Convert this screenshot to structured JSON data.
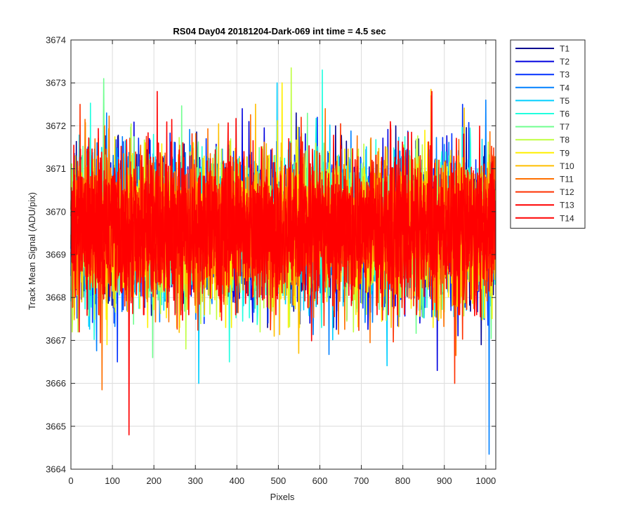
{
  "chart_data": {
    "type": "line",
    "title": "RS04 Day04 20181204-Dark-069 int time = 4.5 sec",
    "xlabel": "Pixels",
    "ylabel": "Track Mean Signal (ADU/pix)",
    "xlim": [
      0,
      1024
    ],
    "ylim": [
      3664,
      3674
    ],
    "xticks": [
      0,
      100,
      200,
      300,
      400,
      500,
      600,
      700,
      800,
      900,
      1000
    ],
    "yticks": [
      3664,
      3665,
      3666,
      3667,
      3668,
      3669,
      3670,
      3671,
      3672,
      3673,
      3674
    ],
    "grid": true,
    "legend_position": "outside-top-right",
    "n_points": 1024,
    "series": [
      {
        "name": "T1",
        "color": "#00008F",
        "mean": 3669.6,
        "approx_min": 3666.9,
        "approx_max": 3672.3
      },
      {
        "name": "T2",
        "color": "#0000DF",
        "mean": 3669.6,
        "approx_min": 3666.3,
        "approx_max": 3672.4
      },
      {
        "name": "T3",
        "color": "#0030FF",
        "mean": 3669.6,
        "approx_min": 3666.5,
        "approx_max": 3672.5
      },
      {
        "name": "T4",
        "color": "#0080FF",
        "mean": 3669.6,
        "approx_min": 3664.35,
        "approx_max": 3672.6
      },
      {
        "name": "T5",
        "color": "#00CFFF",
        "mean": 3669.6,
        "approx_min": 3666.0,
        "approx_max": 3673.0
      },
      {
        "name": "T6",
        "color": "#20FFDF",
        "mean": 3669.6,
        "approx_min": 3666.5,
        "approx_max": 3673.3
      },
      {
        "name": "T7",
        "color": "#70FF8F",
        "mean": 3669.6,
        "approx_min": 3666.6,
        "approx_max": 3673.1
      },
      {
        "name": "T8",
        "color": "#BFFF40",
        "mean": 3669.6,
        "approx_min": 3666.8,
        "approx_max": 3673.35
      },
      {
        "name": "T9",
        "color": "#FFEF00",
        "mean": 3669.6,
        "approx_min": 3666.9,
        "approx_max": 3673.0
      },
      {
        "name": "T10",
        "color": "#FFBF00",
        "mean": 3669.6,
        "approx_min": 3666.7,
        "approx_max": 3672.85
      },
      {
        "name": "T11",
        "color": "#FF7000",
        "mean": 3669.6,
        "approx_min": 3665.85,
        "approx_max": 3672.7
      },
      {
        "name": "T12",
        "color": "#FF3000",
        "mean": 3669.6,
        "approx_min": 3666.0,
        "approx_max": 3672.5
      },
      {
        "name": "T13",
        "color": "#FF0000",
        "mean": 3669.6,
        "approx_min": 3667.2,
        "approx_max": 3672.8
      },
      {
        "name": "T14",
        "color": "#FF0000",
        "mean": 3669.6,
        "approx_min": 3664.8,
        "approx_max": 3672.8
      }
    ]
  }
}
